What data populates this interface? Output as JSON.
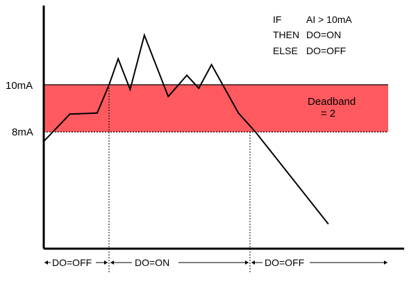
{
  "logic": {
    "if_keyword": "IF",
    "if_condition": "AI > 10mA",
    "then_keyword": "THEN",
    "then_action": "DO=ON",
    "else_keyword": "ELSE",
    "else_action": "DO=OFF"
  },
  "thresholds": {
    "upper_label": "10mA",
    "lower_label": "8mA"
  },
  "deadband": {
    "label": "Deadband",
    "value_label": "= 2",
    "color": "#ff5a5f"
  },
  "states": {
    "off_before": "DO=OFF",
    "on": "DO=ON",
    "off_after": "DO=OFF"
  },
  "signal": {
    "color": "#000000",
    "points": [
      [
        0,
        7.6
      ],
      [
        1.03,
        8.76
      ],
      [
        2.1,
        8.8
      ],
      [
        2.57,
        10.0
      ],
      [
        2.93,
        11.1
      ],
      [
        3.4,
        9.8
      ],
      [
        3.96,
        12.1
      ],
      [
        4.9,
        9.5
      ],
      [
        5.63,
        10.4
      ],
      [
        6.1,
        9.85
      ],
      [
        6.6,
        10.85
      ],
      [
        7.66,
        8.8
      ],
      [
        8.33,
        8.0
      ],
      [
        11.2,
        4.1
      ]
    ]
  }
}
